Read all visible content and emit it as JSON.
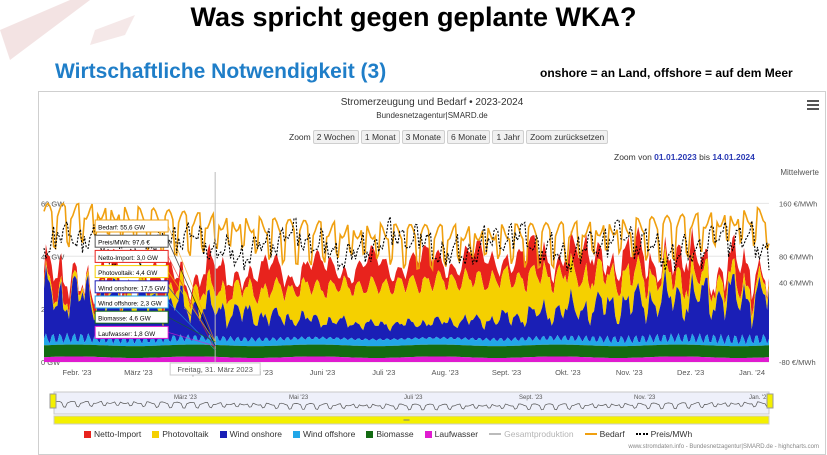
{
  "slide": {
    "title": "Was spricht gegen geplante WKA?",
    "subtitle": "Wirtschaftliche Notwendigkeit (3)",
    "note": "onshore = an Land, offshore = auf dem Meer"
  },
  "chart_header": {
    "title": "Stromerzeugung und Bedarf  •  2023-2024",
    "subtitle": "Bundesnetzagentur|SMARD.de",
    "zoom_label": "Zoom",
    "zoom_buttons": [
      "2 Wochen",
      "1 Monat",
      "3 Monate",
      "6 Monate",
      "1 Jahr",
      "Zoom zurücksetzen"
    ],
    "range_from_label": "Zoom von",
    "range_from": "01.01.2023",
    "range_to_label": "bis",
    "range_to": "14.01.2024",
    "right_axis_title": "Mittelwerte",
    "credits": "www.stromdaten.info - Bundesnetzagentur|SMARD.de - highcharts.com"
  },
  "chart_data": {
    "type": "area",
    "x_range": [
      "2023-01-01",
      "2024-01-14"
    ],
    "x_tick_labels": [
      "Febr. '23",
      "März '23",
      "Apr. '23",
      "Mai '23",
      "Juni '23",
      "Juli '23",
      "Aug. '23",
      "Sept. '23",
      "Okt. '23",
      "Nov. '23",
      "Dez. '23",
      "Jan. '24"
    ],
    "navigator_labels": [
      "März '23",
      "Mai '23",
      "Juli '23",
      "Sept. '23",
      "Nov. '23",
      "Jan. '24"
    ],
    "y_left": {
      "ticks": [
        "0 GW",
        "20 GW",
        "40 GW",
        "60 GW"
      ],
      "range": [
        0,
        70
      ],
      "unit": "GW"
    },
    "y_right": {
      "ticks": [
        "-80 €/MWh",
        "40 €/MWh",
        "80 €/MWh",
        "160 €/MWh"
      ],
      "range": [
        -80,
        200
      ],
      "unit": "€/MWh"
    },
    "series": [
      {
        "name": "Netto-Import",
        "color": "#e8231d"
      },
      {
        "name": "Photovoltaik",
        "color": "#f5d000"
      },
      {
        "name": "Wind onshore",
        "color": "#1a1fb6"
      },
      {
        "name": "Wind offshore",
        "color": "#22a7e8"
      },
      {
        "name": "Biomasse",
        "color": "#136b12"
      },
      {
        "name": "Laufwasser",
        "color": "#e01bd0"
      },
      {
        "name": "Gesamtproduktion",
        "color": "#bbbbbb",
        "visible": false
      },
      {
        "name": "Bedarf",
        "color": "#f0a010"
      },
      {
        "name": "Preis/MWh",
        "color": "#000000"
      }
    ],
    "tooltip": {
      "date": "Freitag, 31. März 2023",
      "rows": [
        {
          "label": "Bedarf",
          "value": "55,6 GW",
          "color": "#f0a010"
        },
        {
          "label": "Preis/MWh",
          "value": "97,6 €",
          "color": "#000000"
        },
        {
          "label": "Netto-Import",
          "value": "3,0 GW",
          "color": "#e8231d"
        },
        {
          "label": "Photovoltaik",
          "value": "4,4 GW",
          "color": "#f5d000"
        },
        {
          "label": "Wind onshore",
          "value": "17,5 GW",
          "color": "#1a1fb6"
        },
        {
          "label": "Wind offshore",
          "value": "2,3 GW",
          "color": "#22a7e8"
        },
        {
          "label": "Biomasse",
          "value": "4,6 GW",
          "color": "#136b12"
        },
        {
          "label": "Laufwasser",
          "value": "1,8 GW",
          "color": "#e01bd0"
        }
      ]
    },
    "typical_levels_gw": {
      "laufwasser": 1.8,
      "biomasse": 4.5,
      "wind_offshore": 2.5,
      "wind_onshore": 13,
      "photovoltaik": 8,
      "netto_import": 5,
      "bedarf": 55
    },
    "typical_price_eur": 100
  }
}
